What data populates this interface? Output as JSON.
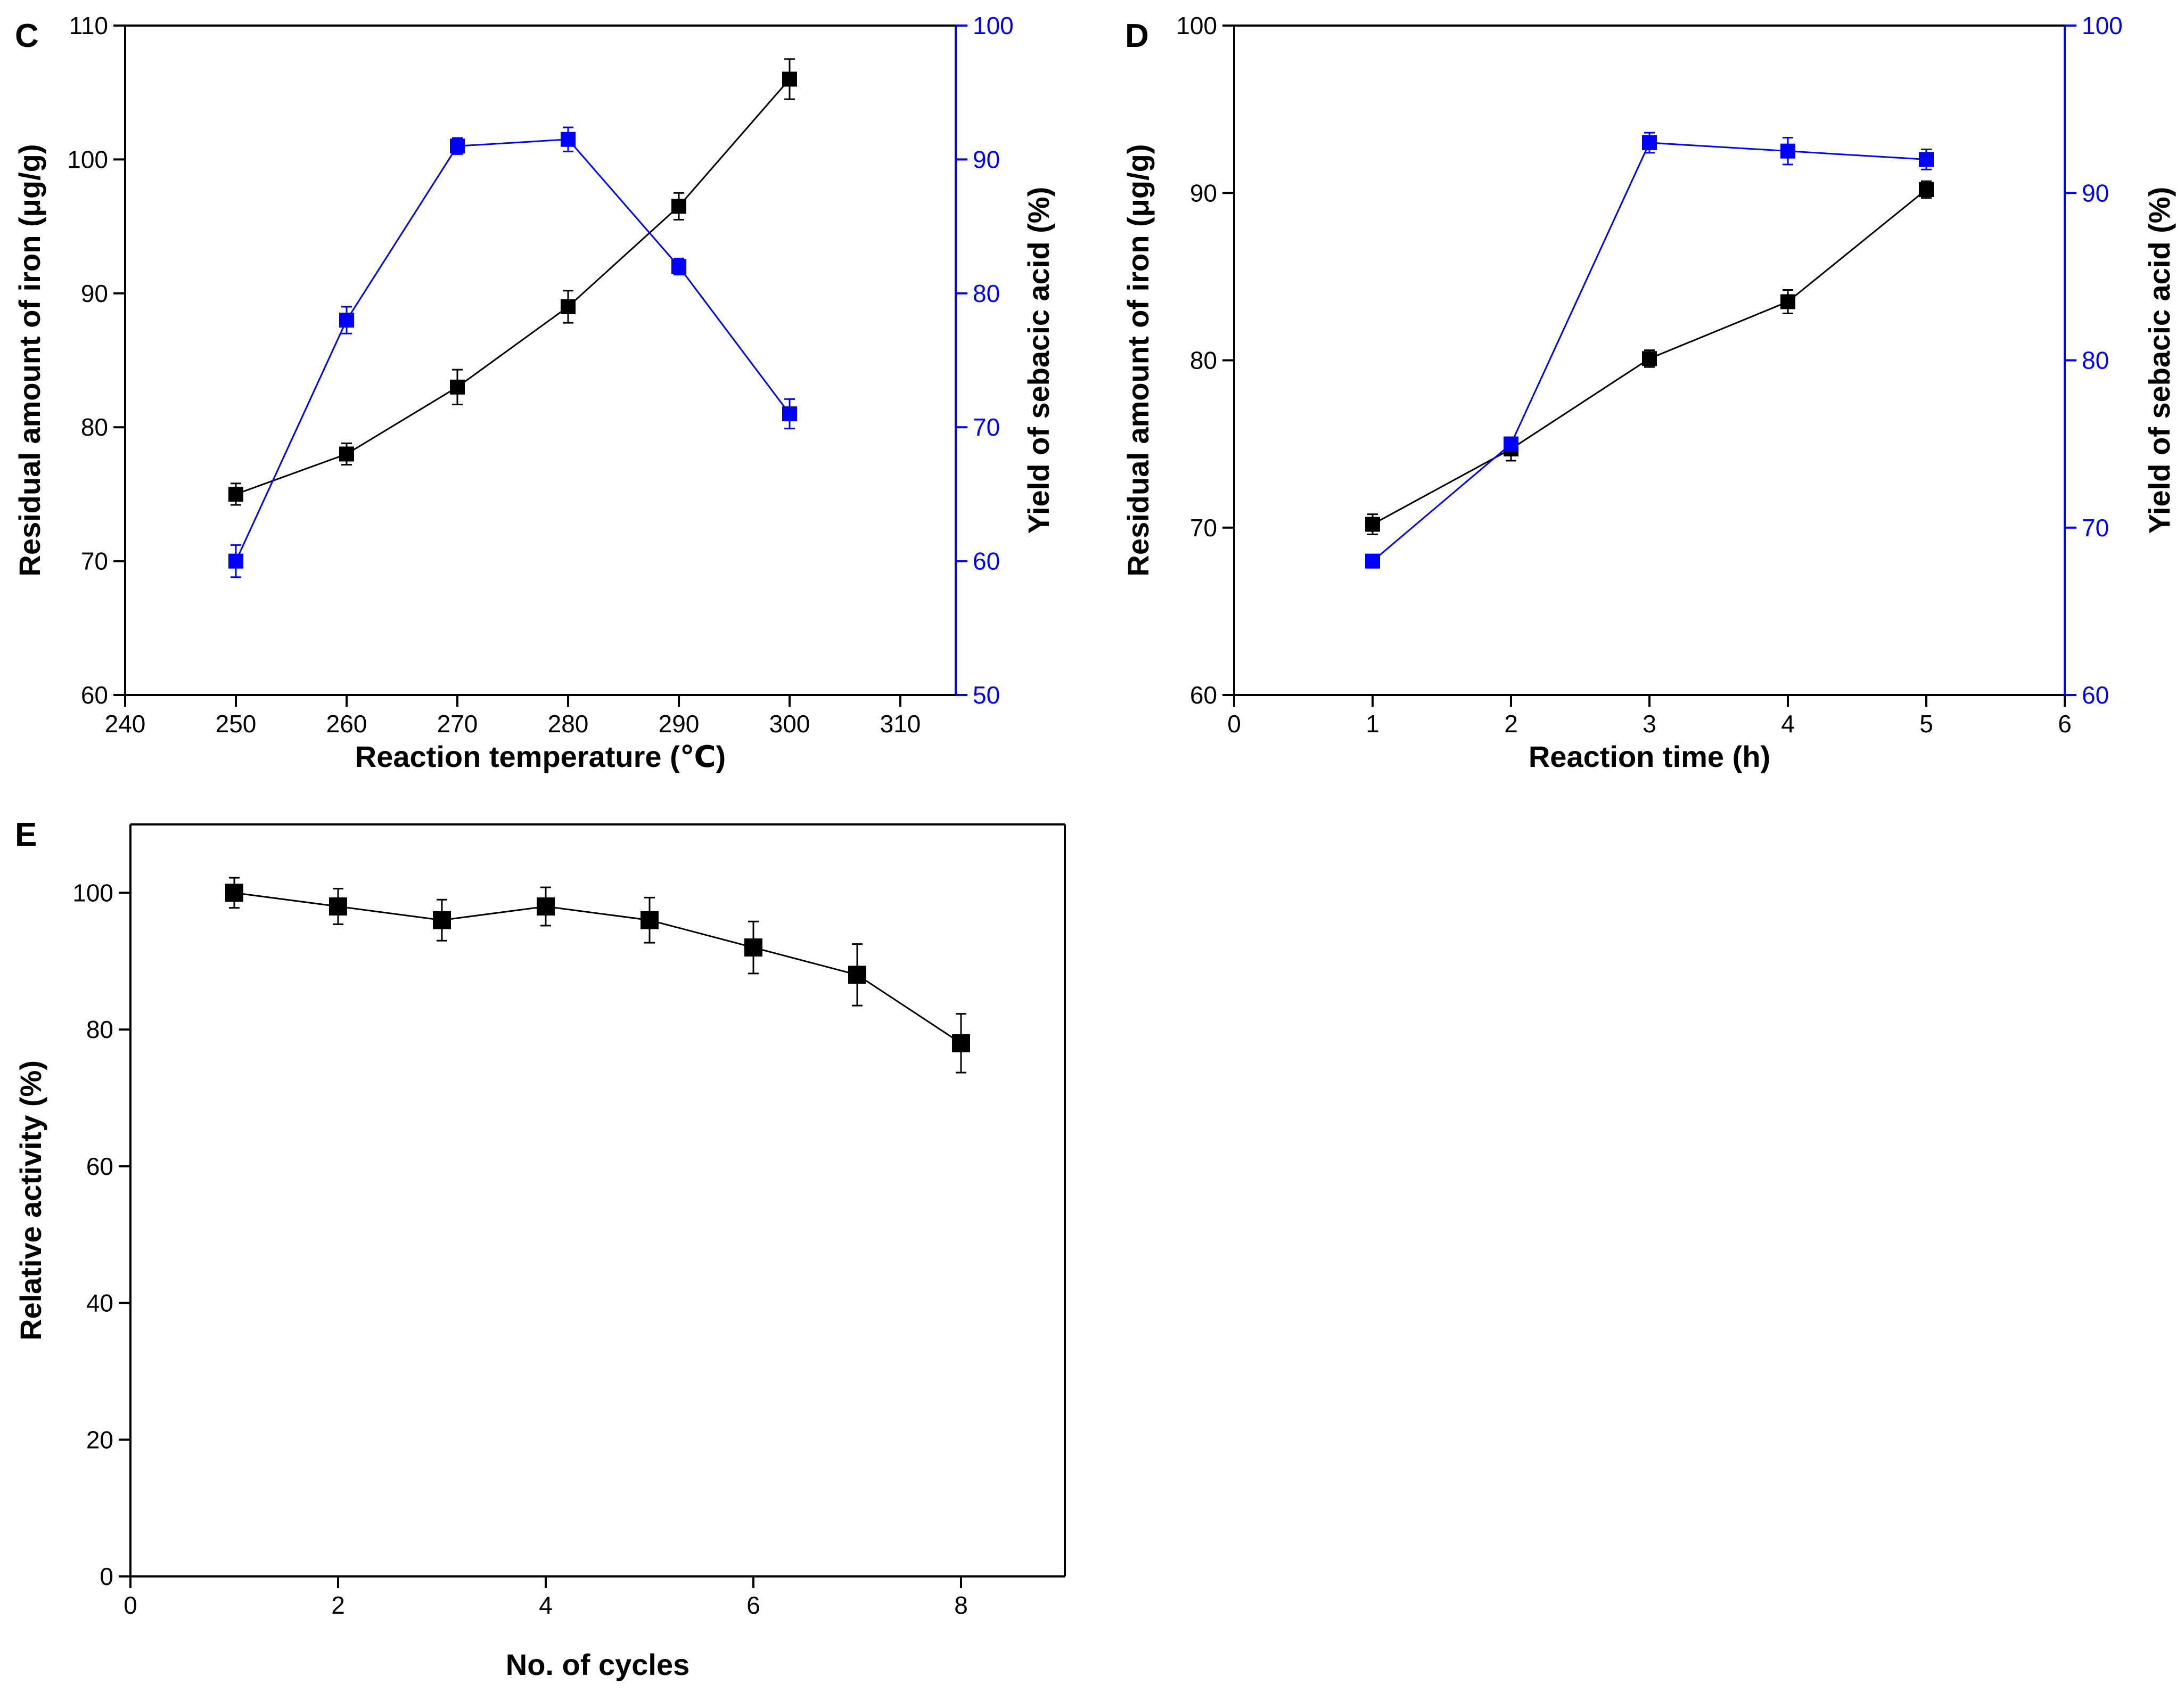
{
  "colors": {
    "black_series": "#000000",
    "blue_series": "#0000ff",
    "axis": "#000000"
  },
  "chart_data": [
    {
      "type": "line",
      "panel_label": "C",
      "xlabel": "Reaction temperature (℃)",
      "x_ticks": [
        240,
        250,
        260,
        270,
        280,
        290,
        300,
        310
      ],
      "xlim": [
        240,
        315
      ],
      "y_left": {
        "label": "Residual amount of iron (μg/g)",
        "lim": [
          60,
          110
        ],
        "ticks": [
          60,
          70,
          80,
          90,
          100,
          110
        ]
      },
      "y_right": {
        "label": "Yield of sebacic acid (%)",
        "lim": [
          50,
          100
        ],
        "ticks": [
          50,
          60,
          70,
          80,
          90,
          100
        ],
        "color": "#0000ff"
      },
      "x": [
        250,
        260,
        270,
        280,
        290,
        300
      ],
      "series": [
        {
          "name": "Residual iron",
          "axis": "left",
          "color": "#000000",
          "values": [
            75,
            78,
            83,
            89,
            96.5,
            106
          ],
          "errors": [
            0.8,
            0.8,
            1.3,
            1.2,
            1.0,
            1.5
          ]
        },
        {
          "name": "Sebacic acid yield",
          "axis": "right",
          "color": "#0000ff",
          "values": [
            60,
            78,
            91,
            91.5,
            82,
            71
          ],
          "errors": [
            1.2,
            1.0,
            0.6,
            0.9,
            0.6,
            1.1
          ]
        }
      ]
    },
    {
      "type": "line",
      "panel_label": "D",
      "xlabel": "Reaction time (h)",
      "x_ticks": [
        0,
        1,
        2,
        3,
        4,
        5,
        6
      ],
      "xlim": [
        0,
        6
      ],
      "y_left": {
        "label": "Residual amount of iron (μg/g)",
        "lim": [
          60,
          100
        ],
        "ticks": [
          60,
          70,
          80,
          90,
          100
        ]
      },
      "y_right": {
        "label": "Yield of sebacic acid (%)",
        "lim": [
          60,
          100
        ],
        "ticks": [
          60,
          70,
          80,
          90,
          100
        ],
        "color": "#0000ff"
      },
      "x": [
        1,
        2,
        3,
        4,
        5
      ],
      "series": [
        {
          "name": "Residual iron",
          "axis": "left",
          "color": "#000000",
          "values": [
            70.2,
            74.7,
            80.1,
            83.5,
            90.2
          ],
          "errors": [
            0.6,
            0.7,
            0.5,
            0.7,
            0.5
          ]
        },
        {
          "name": "Sebacic acid yield",
          "axis": "right",
          "color": "#0000ff",
          "values": [
            68,
            75,
            93,
            92.5,
            92
          ],
          "errors": [
            0,
            0.4,
            0.6,
            0.8,
            0.6
          ]
        }
      ]
    },
    {
      "type": "line",
      "panel_label": "E",
      "xlabel": "No. of cycles",
      "x_ticks": [
        0,
        2,
        4,
        6,
        8
      ],
      "xlim": [
        0,
        9
      ],
      "y_left": {
        "label": "Relative activity (%)",
        "lim": [
          0,
          110
        ],
        "ticks": [
          0,
          20,
          40,
          60,
          80,
          100
        ]
      },
      "x": [
        1,
        2,
        3,
        4,
        5,
        6,
        7,
        8
      ],
      "series": [
        {
          "name": "Relative activity",
          "axis": "left",
          "color": "#000000",
          "values": [
            100,
            98,
            96,
            98,
            96,
            92,
            88,
            78
          ],
          "errors": [
            2.2,
            2.6,
            3.0,
            2.8,
            3.3,
            3.8,
            4.5,
            4.3
          ]
        }
      ]
    }
  ]
}
